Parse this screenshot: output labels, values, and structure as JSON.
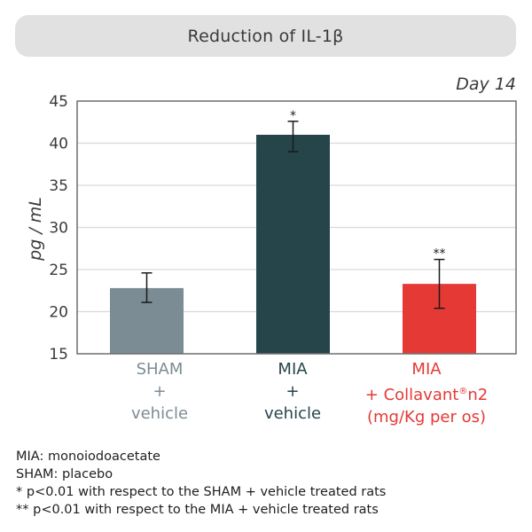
{
  "colors": {
    "title_bg": "#e1e1e1",
    "sham": "#7b8c94",
    "mia": "#26454b",
    "collavant": "#e53935",
    "grid": "#d9d9d9",
    "frame": "#6f6f6f"
  },
  "chart_data": {
    "type": "bar",
    "title": "Reduction of IL-1β",
    "subtitle": "Day 14",
    "xlabel": "",
    "ylabel": "pg / mL",
    "ylim": [
      15,
      45
    ],
    "yticks": [
      15,
      20,
      25,
      30,
      35,
      40,
      45
    ],
    "grid": true,
    "categories": [
      {
        "lines": [
          "SHAM",
          "+",
          "vehicle"
        ]
      },
      {
        "lines": [
          "MIA",
          "+",
          "vehicle"
        ]
      },
      {
        "lines": [
          "MIA",
          "+ Collavant",
          "®",
          "n2",
          "(mg/Kg per os)"
        ]
      }
    ],
    "values": [
      22.8,
      41.0,
      23.3
    ],
    "error_low": [
      21.1,
      39.0,
      20.4
    ],
    "error_high": [
      24.6,
      42.6,
      26.2
    ],
    "significance": [
      "",
      "*",
      "**"
    ],
    "bar_colors": [
      "#7b8c94",
      "#26454b",
      "#e53935"
    ]
  },
  "notes": [
    "MIA: monoiodoacetate",
    "SHAM: placebo",
    "* p<0.01 with respect to the SHAM + vehicle treated rats",
    "** p<0.01 with respect to the MIA + vehicle treated rats"
  ]
}
